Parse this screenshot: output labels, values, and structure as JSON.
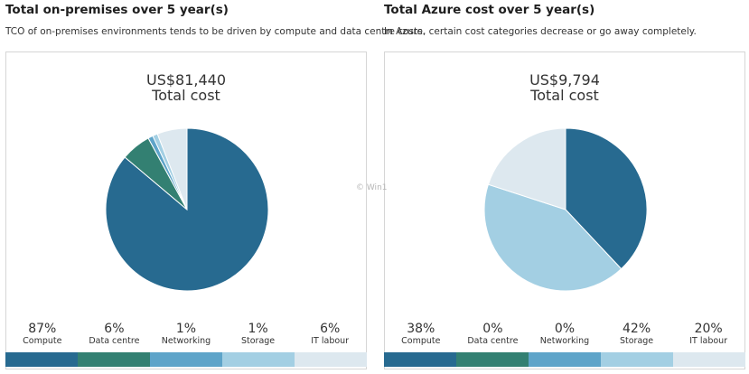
{
  "colors": [
    "#276a90",
    "#338072",
    "#5ea4c9",
    "#a3cfe3",
    "#dde8ef"
  ],
  "watermark": "© Win1",
  "chart_data": [
    {
      "type": "pie",
      "title": "Total on-premises over 5 year(s)",
      "subtitle": "TCO of on-premises environments tends to be driven by compute and data centre costs.",
      "total_value": "US$81,440",
      "total_label": "Total cost",
      "categories": [
        "Compute",
        "Data centre",
        "Networking",
        "Storage",
        "IT labour"
      ],
      "values": [
        87,
        6,
        1,
        1,
        6
      ],
      "labels": [
        "87%",
        "6%",
        "1%",
        "1%",
        "6%"
      ]
    },
    {
      "type": "pie",
      "title": "Total Azure cost over 5 year(s)",
      "subtitle": "In Azure, certain cost categories decrease or go away completely.",
      "total_value": "US$9,794",
      "total_label": "Total cost",
      "categories": [
        "Compute",
        "Data centre",
        "Networking",
        "Storage",
        "IT labour"
      ],
      "values": [
        38,
        0,
        0,
        42,
        20
      ],
      "labels": [
        "38%",
        "0%",
        "0%",
        "42%",
        "20%"
      ]
    }
  ]
}
